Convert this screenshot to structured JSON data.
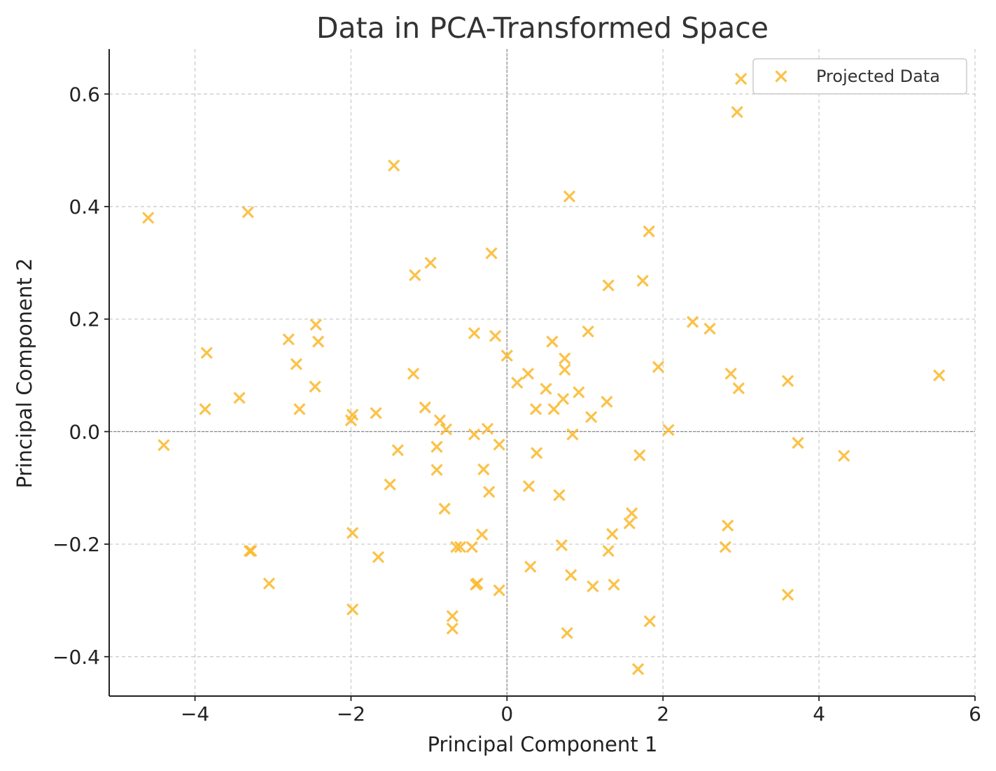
{
  "chart_data": {
    "type": "scatter",
    "title": "Data in PCA-Transformed Space",
    "xlabel": "Principal Component 1",
    "ylabel": "Principal Component 2",
    "xlim": [
      -5.1,
      6.0
    ],
    "ylim": [
      -0.47,
      0.68
    ],
    "xticks": [
      -4,
      -2,
      0,
      2,
      4,
      6
    ],
    "yticks": [
      -0.4,
      -0.2,
      0.0,
      0.2,
      0.4,
      0.6
    ],
    "xtick_labels": [
      "−4",
      "−2",
      "0",
      "2",
      "4",
      "6"
    ],
    "ytick_labels": [
      "−0.4",
      "−0.2",
      "0.0",
      "0.2",
      "0.4",
      "0.6"
    ],
    "grid": true,
    "zero_lines": true,
    "legend": {
      "position": "top-right",
      "entries": [
        "Projected Data"
      ]
    },
    "marker": "x",
    "color": "#FBB829",
    "series": [
      {
        "name": "Projected Data",
        "points": [
          [
            -4.6,
            0.38
          ],
          [
            -4.4,
            -0.024
          ],
          [
            -3.85,
            0.14
          ],
          [
            -3.87,
            0.04
          ],
          [
            -3.43,
            0.06
          ],
          [
            -3.32,
            0.39
          ],
          [
            -3.3,
            -0.212
          ],
          [
            -3.28,
            -0.212
          ],
          [
            -3.05,
            -0.27
          ],
          [
            -2.8,
            0.164
          ],
          [
            -2.7,
            0.12
          ],
          [
            -2.66,
            0.04
          ],
          [
            -2.45,
            0.19
          ],
          [
            -2.42,
            0.16
          ],
          [
            -2.46,
            0.08
          ],
          [
            -2.0,
            0.02
          ],
          [
            -1.98,
            0.03
          ],
          [
            -1.98,
            -0.18
          ],
          [
            -1.98,
            -0.316
          ],
          [
            -1.68,
            0.033
          ],
          [
            -1.65,
            -0.223
          ],
          [
            -1.5,
            -0.094
          ],
          [
            -1.45,
            0.473
          ],
          [
            -1.4,
            -0.033
          ],
          [
            -1.2,
            0.103
          ],
          [
            -1.18,
            0.278
          ],
          [
            -1.05,
            0.043
          ],
          [
            -0.98,
            0.3
          ],
          [
            -0.9,
            -0.027
          ],
          [
            -0.9,
            -0.068
          ],
          [
            -0.86,
            0.02
          ],
          [
            -0.78,
            0.004
          ],
          [
            -0.8,
            -0.137
          ],
          [
            -0.7,
            -0.328
          ],
          [
            -0.7,
            -0.35
          ],
          [
            -0.65,
            -0.205
          ],
          [
            -0.6,
            -0.205
          ],
          [
            -0.45,
            -0.205
          ],
          [
            -0.42,
            0.175
          ],
          [
            -0.42,
            -0.005
          ],
          [
            -0.4,
            -0.272
          ],
          [
            -0.38,
            -0.27
          ],
          [
            -0.32,
            -0.183
          ],
          [
            -0.3,
            -0.067
          ],
          [
            -0.25,
            0.005
          ],
          [
            -0.23,
            -0.107
          ],
          [
            -0.2,
            0.317
          ],
          [
            -0.15,
            0.17
          ],
          [
            -0.1,
            -0.023
          ],
          [
            -0.1,
            -0.282
          ],
          [
            0.0,
            0.135
          ],
          [
            0.13,
            0.087
          ],
          [
            0.27,
            0.103
          ],
          [
            0.28,
            -0.097
          ],
          [
            0.3,
            -0.24
          ],
          [
            0.37,
            0.04
          ],
          [
            0.38,
            -0.038
          ],
          [
            0.5,
            0.076
          ],
          [
            0.58,
            0.16
          ],
          [
            0.6,
            0.04
          ],
          [
            0.67,
            -0.113
          ],
          [
            0.7,
            -0.202
          ],
          [
            0.72,
            0.058
          ],
          [
            0.74,
            0.13
          ],
          [
            0.74,
            0.11
          ],
          [
            0.77,
            -0.358
          ],
          [
            0.8,
            0.418
          ],
          [
            0.82,
            -0.255
          ],
          [
            0.84,
            -0.005
          ],
          [
            0.92,
            0.07
          ],
          [
            1.04,
            0.178
          ],
          [
            1.08,
            0.026
          ],
          [
            1.1,
            -0.275
          ],
          [
            1.28,
            0.053
          ],
          [
            1.3,
            0.26
          ],
          [
            1.3,
            -0.212
          ],
          [
            1.35,
            -0.182
          ],
          [
            1.37,
            -0.272
          ],
          [
            1.57,
            -0.163
          ],
          [
            1.6,
            -0.145
          ],
          [
            1.68,
            -0.422
          ],
          [
            1.7,
            -0.042
          ],
          [
            1.74,
            0.268
          ],
          [
            1.82,
            0.356
          ],
          [
            1.83,
            -0.337
          ],
          [
            1.94,
            0.115
          ],
          [
            2.07,
            0.003
          ],
          [
            2.38,
            0.195
          ],
          [
            2.6,
            0.183
          ],
          [
            2.8,
            -0.205
          ],
          [
            2.83,
            -0.167
          ],
          [
            2.87,
            0.103
          ],
          [
            2.95,
            0.568
          ],
          [
            2.97,
            0.077
          ],
          [
            3.0,
            0.627
          ],
          [
            3.6,
            0.09
          ],
          [
            3.6,
            -0.29
          ],
          [
            3.73,
            -0.02
          ],
          [
            4.32,
            -0.043
          ],
          [
            5.54,
            0.1
          ]
        ]
      }
    ]
  }
}
